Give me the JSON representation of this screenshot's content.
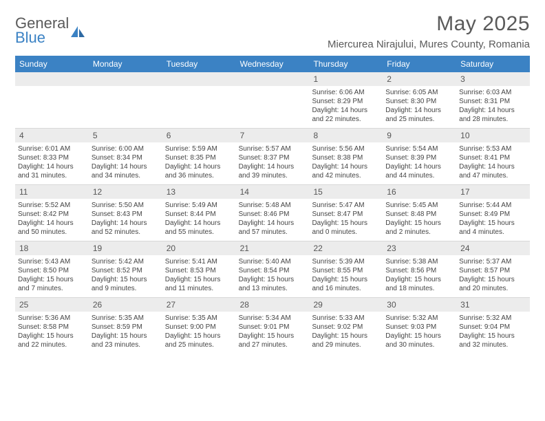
{
  "logo": {
    "line1": "General",
    "line2": "Blue"
  },
  "title": "May 2025",
  "subtitle": "Miercurea Nirajului, Mures County, Romania",
  "colors": {
    "header_bar": "#3b82c4",
    "daynum_bg": "#ececec",
    "text_muted": "#5a5a5a",
    "text_body": "#444444",
    "page_bg": "#ffffff"
  },
  "typography": {
    "title_fontsize": 30,
    "subtitle_fontsize": 15,
    "dow_fontsize": 12,
    "daynum_fontsize": 12,
    "body_fontsize": 10
  },
  "dow": [
    "Sunday",
    "Monday",
    "Tuesday",
    "Wednesday",
    "Thursday",
    "Friday",
    "Saturday"
  ],
  "weeks": [
    [
      null,
      null,
      null,
      null,
      {
        "n": "1",
        "sr": "Sunrise: 6:06 AM",
        "ss": "Sunset: 8:29 PM",
        "dl": "Daylight: 14 hours and 22 minutes."
      },
      {
        "n": "2",
        "sr": "Sunrise: 6:05 AM",
        "ss": "Sunset: 8:30 PM",
        "dl": "Daylight: 14 hours and 25 minutes."
      },
      {
        "n": "3",
        "sr": "Sunrise: 6:03 AM",
        "ss": "Sunset: 8:31 PM",
        "dl": "Daylight: 14 hours and 28 minutes."
      }
    ],
    [
      {
        "n": "4",
        "sr": "Sunrise: 6:01 AM",
        "ss": "Sunset: 8:33 PM",
        "dl": "Daylight: 14 hours and 31 minutes."
      },
      {
        "n": "5",
        "sr": "Sunrise: 6:00 AM",
        "ss": "Sunset: 8:34 PM",
        "dl": "Daylight: 14 hours and 34 minutes."
      },
      {
        "n": "6",
        "sr": "Sunrise: 5:59 AM",
        "ss": "Sunset: 8:35 PM",
        "dl": "Daylight: 14 hours and 36 minutes."
      },
      {
        "n": "7",
        "sr": "Sunrise: 5:57 AM",
        "ss": "Sunset: 8:37 PM",
        "dl": "Daylight: 14 hours and 39 minutes."
      },
      {
        "n": "8",
        "sr": "Sunrise: 5:56 AM",
        "ss": "Sunset: 8:38 PM",
        "dl": "Daylight: 14 hours and 42 minutes."
      },
      {
        "n": "9",
        "sr": "Sunrise: 5:54 AM",
        "ss": "Sunset: 8:39 PM",
        "dl": "Daylight: 14 hours and 44 minutes."
      },
      {
        "n": "10",
        "sr": "Sunrise: 5:53 AM",
        "ss": "Sunset: 8:41 PM",
        "dl": "Daylight: 14 hours and 47 minutes."
      }
    ],
    [
      {
        "n": "11",
        "sr": "Sunrise: 5:52 AM",
        "ss": "Sunset: 8:42 PM",
        "dl": "Daylight: 14 hours and 50 minutes."
      },
      {
        "n": "12",
        "sr": "Sunrise: 5:50 AM",
        "ss": "Sunset: 8:43 PM",
        "dl": "Daylight: 14 hours and 52 minutes."
      },
      {
        "n": "13",
        "sr": "Sunrise: 5:49 AM",
        "ss": "Sunset: 8:44 PM",
        "dl": "Daylight: 14 hours and 55 minutes."
      },
      {
        "n": "14",
        "sr": "Sunrise: 5:48 AM",
        "ss": "Sunset: 8:46 PM",
        "dl": "Daylight: 14 hours and 57 minutes."
      },
      {
        "n": "15",
        "sr": "Sunrise: 5:47 AM",
        "ss": "Sunset: 8:47 PM",
        "dl": "Daylight: 15 hours and 0 minutes."
      },
      {
        "n": "16",
        "sr": "Sunrise: 5:45 AM",
        "ss": "Sunset: 8:48 PM",
        "dl": "Daylight: 15 hours and 2 minutes."
      },
      {
        "n": "17",
        "sr": "Sunrise: 5:44 AM",
        "ss": "Sunset: 8:49 PM",
        "dl": "Daylight: 15 hours and 4 minutes."
      }
    ],
    [
      {
        "n": "18",
        "sr": "Sunrise: 5:43 AM",
        "ss": "Sunset: 8:50 PM",
        "dl": "Daylight: 15 hours and 7 minutes."
      },
      {
        "n": "19",
        "sr": "Sunrise: 5:42 AM",
        "ss": "Sunset: 8:52 PM",
        "dl": "Daylight: 15 hours and 9 minutes."
      },
      {
        "n": "20",
        "sr": "Sunrise: 5:41 AM",
        "ss": "Sunset: 8:53 PM",
        "dl": "Daylight: 15 hours and 11 minutes."
      },
      {
        "n": "21",
        "sr": "Sunrise: 5:40 AM",
        "ss": "Sunset: 8:54 PM",
        "dl": "Daylight: 15 hours and 13 minutes."
      },
      {
        "n": "22",
        "sr": "Sunrise: 5:39 AM",
        "ss": "Sunset: 8:55 PM",
        "dl": "Daylight: 15 hours and 16 minutes."
      },
      {
        "n": "23",
        "sr": "Sunrise: 5:38 AM",
        "ss": "Sunset: 8:56 PM",
        "dl": "Daylight: 15 hours and 18 minutes."
      },
      {
        "n": "24",
        "sr": "Sunrise: 5:37 AM",
        "ss": "Sunset: 8:57 PM",
        "dl": "Daylight: 15 hours and 20 minutes."
      }
    ],
    [
      {
        "n": "25",
        "sr": "Sunrise: 5:36 AM",
        "ss": "Sunset: 8:58 PM",
        "dl": "Daylight: 15 hours and 22 minutes."
      },
      {
        "n": "26",
        "sr": "Sunrise: 5:35 AM",
        "ss": "Sunset: 8:59 PM",
        "dl": "Daylight: 15 hours and 23 minutes."
      },
      {
        "n": "27",
        "sr": "Sunrise: 5:35 AM",
        "ss": "Sunset: 9:00 PM",
        "dl": "Daylight: 15 hours and 25 minutes."
      },
      {
        "n": "28",
        "sr": "Sunrise: 5:34 AM",
        "ss": "Sunset: 9:01 PM",
        "dl": "Daylight: 15 hours and 27 minutes."
      },
      {
        "n": "29",
        "sr": "Sunrise: 5:33 AM",
        "ss": "Sunset: 9:02 PM",
        "dl": "Daylight: 15 hours and 29 minutes."
      },
      {
        "n": "30",
        "sr": "Sunrise: 5:32 AM",
        "ss": "Sunset: 9:03 PM",
        "dl": "Daylight: 15 hours and 30 minutes."
      },
      {
        "n": "31",
        "sr": "Sunrise: 5:32 AM",
        "ss": "Sunset: 9:04 PM",
        "dl": "Daylight: 15 hours and 32 minutes."
      }
    ]
  ]
}
